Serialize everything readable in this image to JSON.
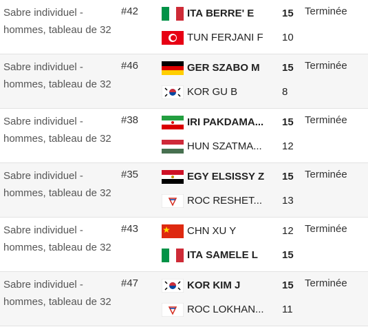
{
  "matches": [
    {
      "event": "Sabre individuel - hommes, tableau de 32",
      "match": "#42",
      "status": "Terminée",
      "competitors": [
        {
          "code": "ITA",
          "name": "BERRE' E",
          "score": 15,
          "winner": true
        },
        {
          "code": "TUN",
          "name": "FERJANI F",
          "score": 10,
          "winner": false
        }
      ]
    },
    {
      "event": "Sabre individuel - hommes, tableau de 32",
      "match": "#46",
      "status": "Terminée",
      "competitors": [
        {
          "code": "GER",
          "name": "SZABO M",
          "score": 15,
          "winner": true
        },
        {
          "code": "KOR",
          "name": "GU B",
          "score": 8,
          "winner": false
        }
      ]
    },
    {
      "event": "Sabre individuel - hommes, tableau de 32",
      "match": "#38",
      "status": "Terminée",
      "competitors": [
        {
          "code": "IRI",
          "name": "PAKDAMA...",
          "score": 15,
          "winner": true
        },
        {
          "code": "HUN",
          "name": "SZATMA...",
          "score": 12,
          "winner": false
        }
      ]
    },
    {
      "event": "Sabre individuel - hommes, tableau de 32",
      "match": "#35",
      "status": "Terminée",
      "competitors": [
        {
          "code": "EGY",
          "name": "ELSISSY Z",
          "score": 15,
          "winner": true
        },
        {
          "code": "ROC",
          "name": "RESHET...",
          "score": 13,
          "winner": false
        }
      ]
    },
    {
      "event": "Sabre individuel - hommes, tableau de 32",
      "match": "#43",
      "status": "Terminée",
      "competitors": [
        {
          "code": "CHN",
          "name": "XU Y",
          "score": 12,
          "winner": false
        },
        {
          "code": "ITA",
          "name": "SAMELE L",
          "score": 15,
          "winner": true
        }
      ]
    },
    {
      "event": "Sabre individuel - hommes, tableau de 32",
      "match": "#47",
      "status": "Terminée",
      "competitors": [
        {
          "code": "KOR",
          "name": "KIM J",
          "score": 15,
          "winner": true
        },
        {
          "code": "ROC",
          "name": "LOKHAN...",
          "score": 11,
          "winner": false
        }
      ]
    }
  ]
}
